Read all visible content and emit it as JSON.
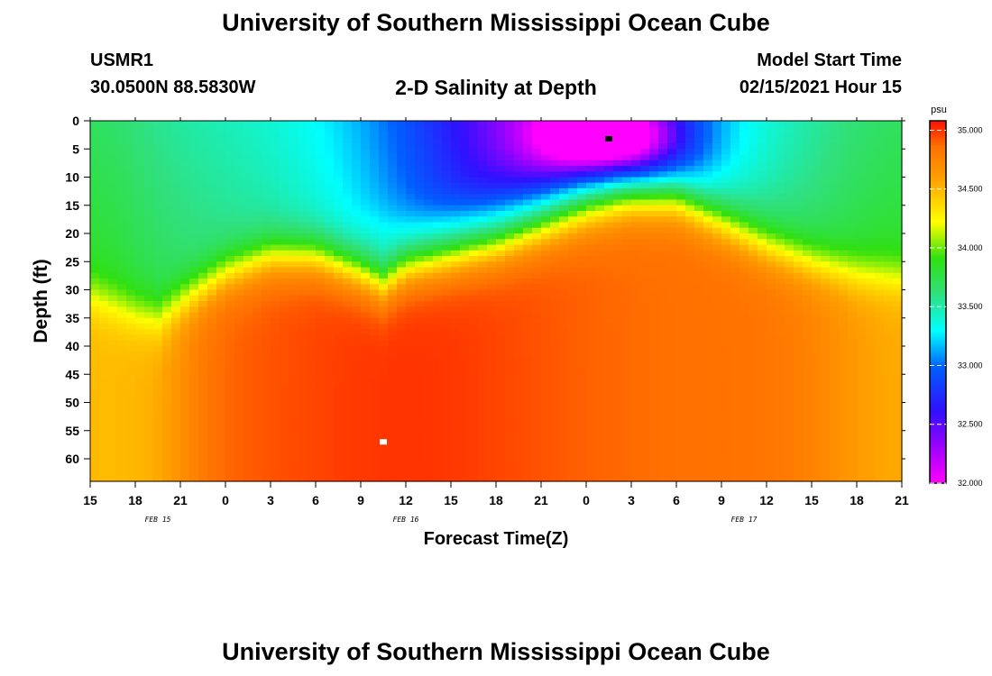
{
  "header": {
    "title": "University of Southern Mississippi Ocean Cube",
    "station_id": "USMR1",
    "station_coords": "30.0500N 88.5830W",
    "plot_title": "2-D Salinity at Depth",
    "model_start_label": "Model Start Time",
    "model_start_value": "02/15/2021 Hour 15"
  },
  "footer": {
    "title": "University of Southern Mississippi Ocean Cube"
  },
  "chart_data": {
    "type": "heatmap",
    "title": "2-D Salinity at Depth",
    "xlabel": "Forecast Time(Z)",
    "ylabel": "Depth (ft)",
    "x_tick_labels": [
      "15",
      "18",
      "21",
      "0",
      "3",
      "6",
      "9",
      "12",
      "15",
      "18",
      "21",
      "0",
      "3",
      "6",
      "9",
      "12",
      "15",
      "18",
      "21"
    ],
    "x_hours_from_start": [
      0,
      3,
      6,
      9,
      12,
      15,
      18,
      21,
      24,
      27,
      30,
      33,
      36,
      39,
      42,
      45,
      48,
      51,
      54
    ],
    "date_labels": [
      {
        "label": "FEB 15",
        "hour": 4.5
      },
      {
        "label": "FEB 16",
        "hour": 21
      },
      {
        "label": "FEB 17",
        "hour": 43.5
      }
    ],
    "y_ticks": [
      0,
      5,
      10,
      15,
      20,
      25,
      30,
      35,
      40,
      45,
      50,
      55,
      60
    ],
    "ylim": [
      0,
      64
    ],
    "xlim": [
      0,
      54
    ],
    "colorbar": {
      "unit": "psu",
      "ticks": [
        "35.000",
        "34.500",
        "34.000",
        "33.500",
        "33.000",
        "32.500",
        "32.000"
      ],
      "range": [
        32.0,
        35.08
      ]
    },
    "markers": [
      {
        "name": "min-salinity-marker",
        "hour": 34.5,
        "depth": 3.2,
        "color": "#000000"
      },
      {
        "name": "max-salinity-marker",
        "hour": 19.5,
        "depth": 57,
        "color": "#ffffff"
      }
    ],
    "interface_depth_profile": {
      "hours": [
        0,
        3,
        4.5,
        6,
        9,
        12,
        15,
        18,
        19.5,
        21,
        24,
        27,
        30,
        33,
        36,
        39,
        42,
        45,
        48,
        51,
        54
      ],
      "depth": [
        31,
        34,
        35,
        32,
        27,
        24,
        24,
        27,
        29,
        26,
        24,
        22,
        19,
        16,
        14,
        14,
        18,
        22,
        25,
        27,
        28
      ]
    },
    "fresh_core_profile": {
      "hours": [
        17,
        19,
        21,
        24,
        27,
        30,
        33,
        35,
        38,
        41
      ],
      "depth": [
        20,
        18,
        18,
        16,
        14,
        12,
        9,
        8,
        10,
        13
      ]
    }
  }
}
